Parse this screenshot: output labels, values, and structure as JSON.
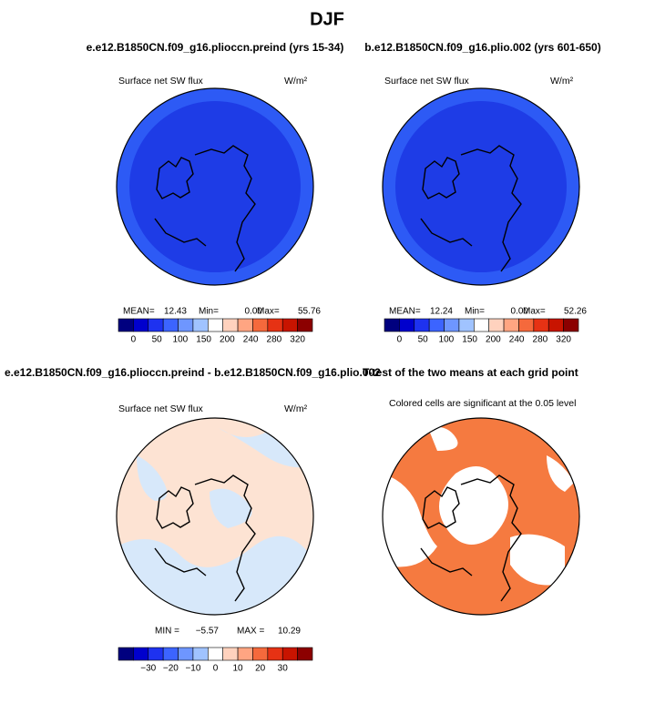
{
  "title": "DJF",
  "panels": [
    {
      "title": "e.e12.B1850CN.f09_g16.plioccn.preind (yrs 15-34)",
      "variable": "Surface net SW flux",
      "units": "W/m²",
      "stats": [
        {
          "label": "MEAN=",
          "value": "12.43"
        },
        {
          "label": "Min=",
          "value": "0.00"
        },
        {
          "label": "Max=",
          "value": "55.76"
        }
      ],
      "colorbar": {
        "labels": [
          "0",
          "50",
          "100",
          "150",
          "200",
          "240",
          "280",
          "320"
        ],
        "colors": [
          "#00007f",
          "#0000cd",
          "#1e32f0",
          "#3c64ff",
          "#6e96ff",
          "#a0c3ff",
          "#ffffff",
          "#ffd2be",
          "#ffa582",
          "#f5693c",
          "#e63214",
          "#c81400",
          "#8c0000"
        ]
      }
    },
    {
      "title": "b.e12.B1850CN.f09_g16.plio.002 (yrs 601-650)",
      "variable": "Surface net SW flux",
      "units": "W/m²",
      "stats": [
        {
          "label": "MEAN=",
          "value": "12.24"
        },
        {
          "label": "Min=",
          "value": "0.00"
        },
        {
          "label": "Max=",
          "value": "52.26"
        }
      ],
      "colorbar": {
        "labels": [
          "0",
          "50",
          "100",
          "150",
          "200",
          "240",
          "280",
          "320"
        ],
        "colors": [
          "#00007f",
          "#0000cd",
          "#1e32f0",
          "#3c64ff",
          "#6e96ff",
          "#a0c3ff",
          "#ffffff",
          "#ffd2be",
          "#ffa582",
          "#f5693c",
          "#e63214",
          "#c81400",
          "#8c0000"
        ]
      }
    },
    {
      "title": "e.e12.B1850CN.f09_g16.plioccn.preind - b.e12.B1850CN.f09_g16.plio.002",
      "variable": "Surface net SW flux",
      "units": "W/m²",
      "stats": [
        {
          "label": "MIN =",
          "value": "−5.57"
        },
        {
          "label": "MAX =",
          "value": "10.29"
        }
      ],
      "colorbar": {
        "labels": [
          "−30",
          "−20",
          "−10",
          "0",
          "10",
          "20",
          "30"
        ],
        "colors": [
          "#00007f",
          "#0000cd",
          "#1e32f0",
          "#3c64ff",
          "#6e96ff",
          "#a0c3ff",
          "#ffffff",
          "#ffd2be",
          "#ffa582",
          "#f5693c",
          "#e63214",
          "#c81400",
          "#8c0000"
        ]
      }
    },
    {
      "title": "T-test of the two means at each grid point",
      "note": "Colored cells are significant at the 0.05 level"
    }
  ]
}
